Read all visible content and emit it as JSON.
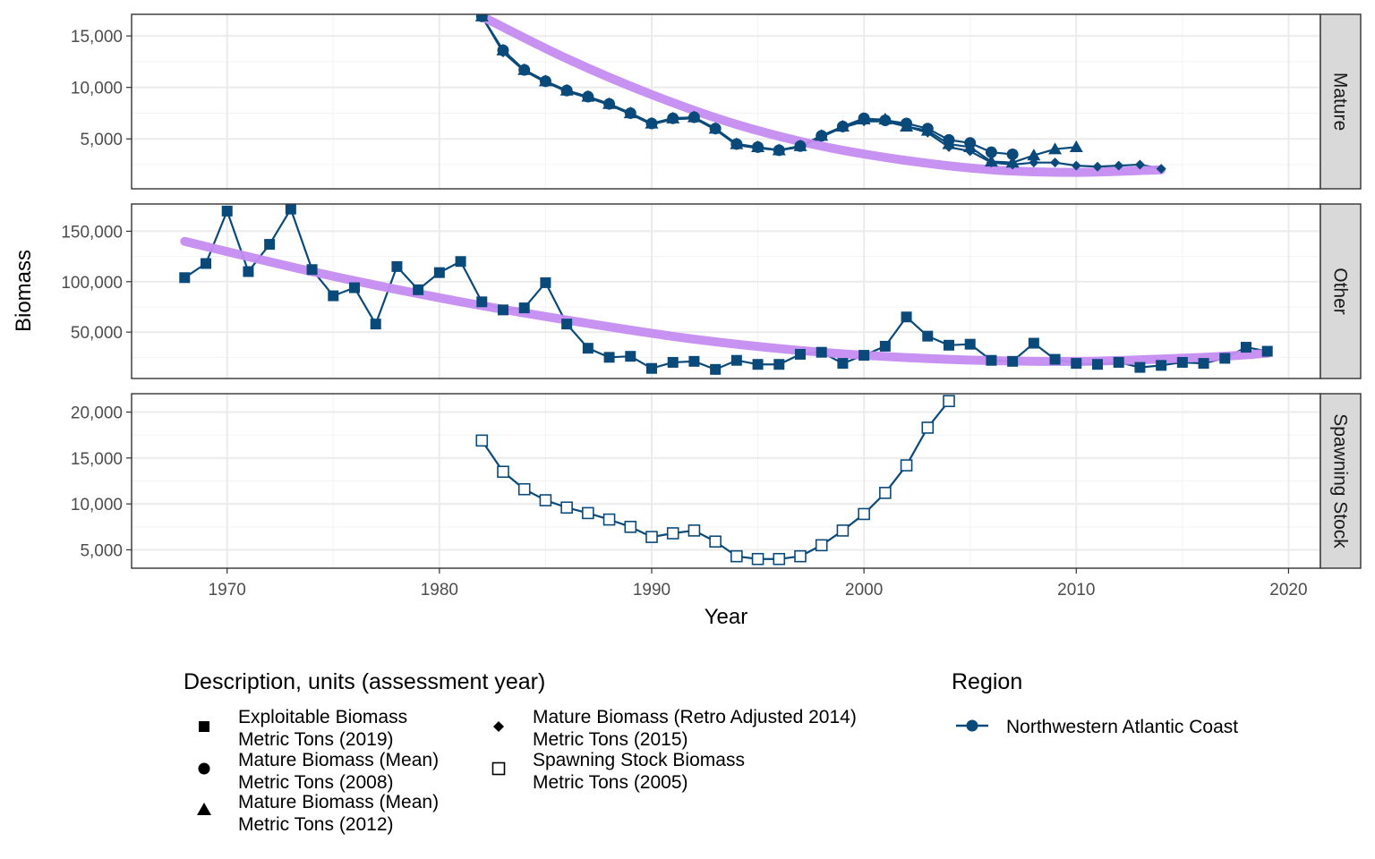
{
  "chart_data": {
    "type": "line",
    "xlabel": "Year",
    "ylabel": "Biomass",
    "xlim": [
      1965.5,
      2021.5
    ],
    "x_ticks": [
      1970,
      1980,
      1990,
      2000,
      2010,
      2020
    ],
    "x_tick_labels": [
      "1970",
      "1980",
      "1990",
      "2000",
      "2010",
      "2020"
    ],
    "line_color": "#0a4a7a",
    "trend_color": "#c58cf2",
    "panels": [
      {
        "strip": "Mature",
        "ylim": [
          150,
          17100
        ],
        "y_ticks": [
          5000,
          10000,
          15000
        ],
        "y_tick_labels": [
          "5,000",
          "10,000",
          "15,000"
        ],
        "trend": {
          "x": [
            1982,
            1986,
            1990,
            1994,
            1998,
            2002,
            2006,
            2010,
            2014
          ],
          "y": [
            16900,
            12800,
            9300,
            6400,
            4300,
            2900,
            2000,
            1750,
            2000
          ]
        },
        "series": [
          {
            "shape": "circle",
            "x": [
              1982,
              1983,
              1984,
              1985,
              1986,
              1987,
              1988,
              1989,
              1990,
              1991,
              1992,
              1993,
              1994,
              1995,
              1996,
              1997,
              1998,
              1999,
              2000,
              2001,
              2002,
              2003,
              2004,
              2005,
              2006,
              2007
            ],
            "y": [
              16900,
              13600,
              11700,
              10600,
              9700,
              9100,
              8400,
              7500,
              6500,
              7000,
              7100,
              6000,
              4500,
              4200,
              3900,
              4300,
              5300,
              6200,
              7000,
              6800,
              6500,
              6000,
              4900,
              4600,
              3700,
              3500
            ]
          },
          {
            "shape": "triangle",
            "x": [
              1982,
              1983,
              1984,
              1985,
              1986,
              1987,
              1988,
              1989,
              1990,
              1991,
              1992,
              1993,
              1994,
              1995,
              1996,
              1997,
              1998,
              1999,
              2000,
              2001,
              2002,
              2003,
              2004,
              2005,
              2006,
              2007,
              2008,
              2009,
              2010
            ],
            "y": [
              16900,
              13600,
              11700,
              10600,
              9700,
              9100,
              8400,
              7500,
              6500,
              7000,
              7100,
              6000,
              4500,
              4200,
              3900,
              4300,
              5300,
              6200,
              6900,
              6900,
              6200,
              5800,
              4500,
              4200,
              2800,
              2700,
              3400,
              4000,
              4200
            ]
          },
          {
            "shape": "diamond",
            "x": [
              1982,
              1983,
              1984,
              1985,
              1986,
              1987,
              1988,
              1989,
              1990,
              1991,
              1992,
              1993,
              1994,
              1995,
              1996,
              1997,
              1998,
              1999,
              2000,
              2001,
              2002,
              2003,
              2004,
              2005,
              2006,
              2007,
              2008,
              2009,
              2010,
              2011,
              2012,
              2013,
              2014
            ],
            "y": [
              16900,
              13400,
              11600,
              10500,
              9600,
              9000,
              8300,
              7400,
              6400,
              6900,
              7000,
              5900,
              4400,
              4100,
              3900,
              4200,
              5200,
              6100,
              6700,
              6700,
              6200,
              5600,
              4200,
              3800,
              2700,
              2500,
              2700,
              2700,
              2400,
              2300,
              2400,
              2500,
              2100
            ]
          }
        ]
      },
      {
        "strip": "Other",
        "ylim": [
          4000,
          177000
        ],
        "y_ticks": [
          50000,
          100000,
          150000
        ],
        "y_tick_labels": [
          "50,000",
          "100,000",
          "150,000"
        ],
        "trend": {
          "x": [
            1968,
            1974,
            1980,
            1986,
            1992,
            1998,
            2004,
            2010,
            2016,
            2019
          ],
          "y": [
            140000,
            110000,
            84000,
            62000,
            43000,
            30000,
            23000,
            21000,
            25000,
            29000
          ]
        },
        "series": [
          {
            "shape": "square",
            "x": [
              1968,
              1969,
              1970,
              1971,
              1972,
              1973,
              1974,
              1975,
              1976,
              1977,
              1978,
              1979,
              1980,
              1981,
              1982,
              1983,
              1984,
              1985,
              1986,
              1987,
              1988,
              1989,
              1990,
              1991,
              1992,
              1993,
              1994,
              1995,
              1996,
              1997,
              1998,
              1999,
              2000,
              2001,
              2002,
              2003,
              2004,
              2005,
              2006,
              2007,
              2008,
              2009,
              2010,
              2011,
              2012,
              2013,
              2014,
              2015,
              2016,
              2017,
              2018,
              2019
            ],
            "y": [
              104000,
              118000,
              170000,
              110000,
              137000,
              172000,
              112000,
              86000,
              94000,
              58000,
              115000,
              92000,
              109000,
              120000,
              80000,
              72000,
              74000,
              99000,
              58000,
              34000,
              25000,
              26000,
              14000,
              20000,
              21000,
              13000,
              22000,
              18000,
              18000,
              28000,
              30000,
              19000,
              27000,
              36000,
              65000,
              46000,
              37000,
              38000,
              22000,
              21000,
              39000,
              23000,
              19000,
              18000,
              20000,
              15000,
              17000,
              20000,
              19000,
              24000,
              35000,
              31000
            ]
          }
        ]
      },
      {
        "strip": "Spawning Stock",
        "ylim": [
          3000,
          22000
        ],
        "y_ticks": [
          5000,
          10000,
          15000,
          20000
        ],
        "y_tick_labels": [
          "5,000",
          "10,000",
          "15,000",
          "20,000"
        ],
        "series": [
          {
            "shape": "open-square",
            "x": [
              1982,
              1983,
              1984,
              1985,
              1986,
              1987,
              1988,
              1989,
              1990,
              1991,
              1992,
              1993,
              1994,
              1995,
              1996,
              1997,
              1998,
              1999,
              2000,
              2001,
              2002,
              2003,
              2004
            ],
            "y": [
              16900,
              13500,
              11600,
              10400,
              9600,
              9000,
              8300,
              7500,
              6400,
              6800,
              7100,
              5900,
              4300,
              4000,
              4000,
              4300,
              5500,
              7100,
              8900,
              11200,
              14200,
              18300,
              21200
            ]
          }
        ]
      }
    ],
    "legend": {
      "position": "bottom",
      "description_title": "Description, units (assessment year)",
      "description_items": [
        {
          "shape": "square",
          "line1": "Exploitable Biomass",
          "line2": "Metric Tons (2019)"
        },
        {
          "shape": "circle",
          "line1": "Mature Biomass (Mean)",
          "line2": "Metric Tons (2008)"
        },
        {
          "shape": "triangle",
          "line1": "Mature Biomass (Mean)",
          "line2": "Metric Tons (2012)"
        },
        {
          "shape": "diamond",
          "line1": "Mature Biomass (Retro Adjusted 2014)",
          "line2": "Metric Tons (2015)"
        },
        {
          "shape": "open-square",
          "line1": "Spawning Stock Biomass",
          "line2": "Metric Tons (2005)"
        }
      ],
      "region_title": "Region",
      "region_items": [
        {
          "label": "Northwestern Atlantic Coast"
        }
      ]
    }
  }
}
